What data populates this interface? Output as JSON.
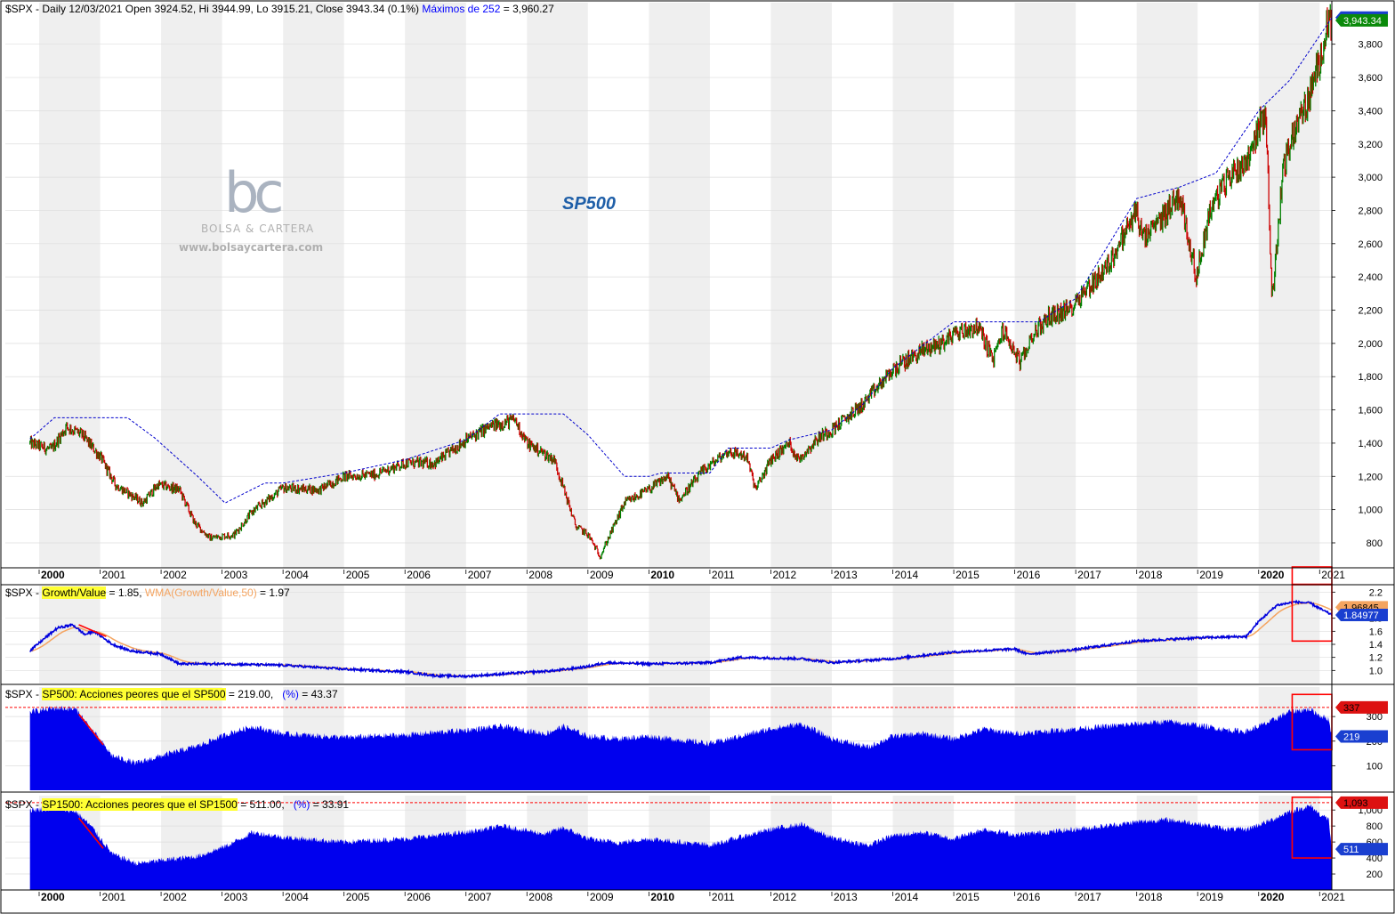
{
  "header": {
    "main": "$SPX - Daily 12/03/2021 Open 3924.52, Hi 3944.99, Lo 3915.21, Close 3943.34 (0.1%)",
    "max_label": "Máximos de 252",
    "max_value": " = 3,960.27",
    "p2_prefix": "$SPX - ",
    "p2_series": "Growth/Value",
    "p2_value": " = 1.85, ",
    "p2_wma": "WMA(Growth/Value,50)",
    "p2_wma_value": " = 1.97",
    "p3_prefix": "$SPX - ",
    "p3_series": "SP500: Acciones peores que el SP500",
    "p3_value": " = 219.00, ",
    "p3_pct": "(%)",
    "p3_pct_value": " = 43.37",
    "p4_prefix": "$SPX - ",
    "p4_series": "SP1500: Acciones peores que el SP1500",
    "p4_value": " = 511.00, ",
    "p4_pct": "(%)",
    "p4_pct_value": " = 33.91"
  },
  "watermark": {
    "logo": "bc",
    "brand": "BOLSA & CARTERA",
    "url": "www.bolsaycartera.com"
  },
  "colors": {
    "up": "#008000",
    "down": "#cc0000",
    "max_line": "#0000cc",
    "area": "#0000ee",
    "wma": "#f4a460",
    "highlight": "#ffff33",
    "annotation": "#ff0000",
    "stripe": "#efefef"
  },
  "chart_data": [
    {
      "type": "line",
      "title": "SP500",
      "subtype": "ohlc-bars",
      "x_range": [
        2000,
        2021.2
      ],
      "ylim": [
        650,
        4050
      ],
      "y_ticks": [
        800,
        1000,
        1200,
        1400,
        1600,
        1800,
        2000,
        2200,
        2400,
        2600,
        2800,
        3000,
        3200,
        3400,
        3600,
        3800
      ],
      "y_tick_labels": [
        "800",
        "1,000",
        "1,200",
        "1,400",
        "1,600",
        "1,800",
        "2,000",
        "2,200",
        "2,400",
        "2,600",
        "2,800",
        "3,000",
        "3,200",
        "3,400",
        "3,600",
        "3,800"
      ],
      "x_tick_labels": [
        "2000",
        "2001",
        "2002",
        "2003",
        "2004",
        "2005",
        "2006",
        "2007",
        "2008",
        "2009",
        "2010",
        "2011",
        "2012",
        "2013",
        "2014",
        "2015",
        "2016",
        "2017",
        "2018",
        "2019",
        "2020",
        "2021"
      ],
      "grid": true,
      "series": [
        {
          "name": "$SPX",
          "x": [
            1999.85,
            2000.2,
            2000.45,
            2000.7,
            2001.0,
            2001.25,
            2001.7,
            2001.95,
            2002.3,
            2002.55,
            2002.8,
            2003.2,
            2003.5,
            2004.0,
            2004.6,
            2005.0,
            2005.5,
            2006.0,
            2006.5,
            2007.0,
            2007.4,
            2007.8,
            2008.0,
            2008.45,
            2008.8,
            2009.0,
            2009.2,
            2009.6,
            2010.0,
            2010.3,
            2010.5,
            2010.9,
            2011.3,
            2011.6,
            2011.75,
            2012.0,
            2012.3,
            2012.45,
            2012.8,
            2013.0,
            2013.5,
            2014.0,
            2014.5,
            2014.8,
            2015.0,
            2015.4,
            2015.65,
            2015.8,
            2016.1,
            2016.3,
            2016.6,
            2016.9,
            2017.0,
            2017.5,
            2018.0,
            2018.1,
            2018.3,
            2018.7,
            2018.98,
            2019.2,
            2019.5,
            2019.8,
            2020.0,
            2020.12,
            2020.22,
            2020.4,
            2020.6,
            2020.8,
            2021.0,
            2021.1,
            2021.2
          ],
          "values": [
            1400,
            1360,
            1500,
            1450,
            1320,
            1150,
            1040,
            1150,
            1120,
            920,
            830,
            850,
            990,
            1130,
            1120,
            1200,
            1210,
            1280,
            1280,
            1420,
            1500,
            1540,
            1400,
            1300,
            900,
            850,
            720,
            1040,
            1120,
            1200,
            1060,
            1240,
            1350,
            1320,
            1120,
            1300,
            1400,
            1300,
            1440,
            1480,
            1630,
            1840,
            1960,
            2000,
            2060,
            2100,
            1900,
            2080,
            1880,
            2060,
            2170,
            2200,
            2260,
            2450,
            2800,
            2620,
            2700,
            2900,
            2400,
            2800,
            3000,
            3100,
            3300,
            3380,
            2250,
            3050,
            3300,
            3450,
            3700,
            3900,
            3943
          ]
        },
        {
          "name": "Máximos de 252",
          "x": [
            1999.85,
            2000.25,
            2001.45,
            2001.9,
            2002.6,
            2003.05,
            2003.7,
            2004.0,
            2005.0,
            2006.0,
            2007.0,
            2007.55,
            2008.6,
            2009.0,
            2009.6,
            2010.0,
            2010.2,
            2011.0,
            2011.3,
            2012.0,
            2012.3,
            2013.0,
            2013.5,
            2014.0,
            2014.5,
            2015.0,
            2016.4,
            2017.0,
            2018.0,
            2018.7,
            2019.3,
            2020.0,
            2020.5,
            2021.2
          ],
          "values": [
            1425,
            1553,
            1553,
            1430,
            1200,
            1040,
            1160,
            1160,
            1220,
            1300,
            1420,
            1576,
            1576,
            1450,
            1200,
            1200,
            1220,
            1220,
            1370,
            1370,
            1420,
            1480,
            1630,
            1850,
            1990,
            2130,
            2130,
            2270,
            2872,
            2940,
            3025,
            3400,
            3580,
            3960
          ]
        }
      ],
      "last_value_tags": [
        "3,960.27",
        "3,943.34"
      ]
    },
    {
      "type": "line",
      "title": "Growth/Value",
      "x_range": [
        2000,
        2021.2
      ],
      "ylim": [
        0.8,
        2.3
      ],
      "y_ticks": [
        1.0,
        1.2,
        1.4,
        1.6,
        1.8,
        2.2
      ],
      "y_tick_labels": [
        "1.0",
        "1.2",
        "1.4",
        "1.6",
        "1.8",
        "2.2"
      ],
      "series": [
        {
          "name": "Growth/Value",
          "x": [
            1999.85,
            2000.1,
            2000.3,
            2000.55,
            2000.75,
            2000.9,
            2001.2,
            2001.5,
            2002.0,
            2002.3,
            2003.0,
            2004.0,
            2005.0,
            2006.0,
            2006.5,
            2007.0,
            2008.0,
            2008.5,
            2009.0,
            2009.3,
            2010.0,
            2011.0,
            2011.5,
            2012.5,
            2013.0,
            2014.0,
            2015.0,
            2016.0,
            2016.2,
            2017.0,
            2018.0,
            2019.0,
            2019.8,
            2020.0,
            2020.3,
            2020.6,
            2020.85,
            2021.0,
            2021.2
          ],
          "values": [
            1.3,
            1.5,
            1.65,
            1.7,
            1.55,
            1.6,
            1.4,
            1.3,
            1.25,
            1.1,
            1.1,
            1.08,
            1.02,
            0.98,
            0.92,
            0.91,
            0.97,
            1.0,
            1.06,
            1.12,
            1.1,
            1.12,
            1.2,
            1.18,
            1.12,
            1.18,
            1.28,
            1.33,
            1.25,
            1.32,
            1.45,
            1.5,
            1.52,
            1.75,
            2.0,
            2.05,
            2.03,
            1.95,
            1.85
          ]
        }
      ],
      "last_value_tags": [
        "1.96845",
        "1.84977"
      ]
    },
    {
      "type": "area",
      "title": "SP500: Acciones peores que el SP500",
      "x_range": [
        2000,
        2021.2
      ],
      "ylim": [
        0,
        420
      ],
      "y_ticks": [
        100,
        200,
        300
      ],
      "y_tick_labels": [
        "100",
        "200",
        "300"
      ],
      "reference_line": 337,
      "series": [
        {
          "name": "SP500: Acciones peores que el SP500",
          "x": [
            1999.85,
            2000.3,
            2000.6,
            2000.85,
            2001.2,
            2001.6,
            2002.0,
            2002.6,
            2003.1,
            2003.5,
            2004.0,
            2005.0,
            2006.0,
            2007.0,
            2007.6,
            2008.3,
            2008.6,
            2009.0,
            2009.5,
            2010.0,
            2011.0,
            2012.0,
            2012.5,
            2013.0,
            2013.6,
            2014.0,
            2014.5,
            2015.0,
            2015.5,
            2016.0,
            2016.5,
            2017.0,
            2017.5,
            2018.0,
            2018.5,
            2019.0,
            2019.5,
            2019.8,
            2020.2,
            2020.5,
            2020.85,
            2021.0,
            2021.15,
            2021.2
          ],
          "values": [
            320,
            335,
            330,
            250,
            140,
            110,
            140,
            180,
            230,
            260,
            230,
            215,
            225,
            245,
            260,
            230,
            260,
            220,
            210,
            220,
            190,
            250,
            270,
            210,
            175,
            220,
            230,
            210,
            250,
            230,
            240,
            250,
            260,
            270,
            280,
            265,
            245,
            240,
            280,
            320,
            330,
            305,
            290,
            219
          ]
        }
      ],
      "last_value_tags": [
        "337",
        "219"
      ]
    },
    {
      "type": "area",
      "title": "SP1500: Acciones peores que el SP1500",
      "x_range": [
        2000,
        2021.2
      ],
      "ylim": [
        0,
        1180
      ],
      "y_ticks": [
        200,
        400,
        600,
        800,
        1000
      ],
      "y_tick_labels": [
        "200",
        "400",
        "600",
        "800",
        "1,000"
      ],
      "reference_line": 1093,
      "series": [
        {
          "name": "SP1500: Acciones peores que el SP1500",
          "x": [
            1999.85,
            2000.3,
            2000.6,
            2000.85,
            2001.2,
            2001.6,
            2002.0,
            2002.6,
            2003.1,
            2003.5,
            2004.0,
            2005.0,
            2006.0,
            2007.0,
            2007.6,
            2008.3,
            2008.6,
            2009.0,
            2009.5,
            2010.0,
            2011.0,
            2012.0,
            2012.5,
            2013.0,
            2013.6,
            2014.0,
            2014.5,
            2015.0,
            2015.5,
            2016.0,
            2016.5,
            2017.0,
            2017.5,
            2018.0,
            2018.5,
            2019.0,
            2019.5,
            2019.8,
            2020.2,
            2020.5,
            2020.85,
            2021.0,
            2021.15,
            2021.2
          ],
          "values": [
            1000,
            1020,
            980,
            800,
            450,
            330,
            370,
            420,
            560,
            720,
            660,
            600,
            640,
            720,
            800,
            700,
            780,
            640,
            590,
            640,
            560,
            760,
            820,
            650,
            560,
            680,
            720,
            640,
            760,
            690,
            720,
            760,
            800,
            850,
            880,
            830,
            760,
            760,
            870,
            980,
            1050,
            950,
            880,
            511
          ]
        }
      ],
      "last_value_tags": [
        "1,093",
        "511"
      ]
    }
  ]
}
